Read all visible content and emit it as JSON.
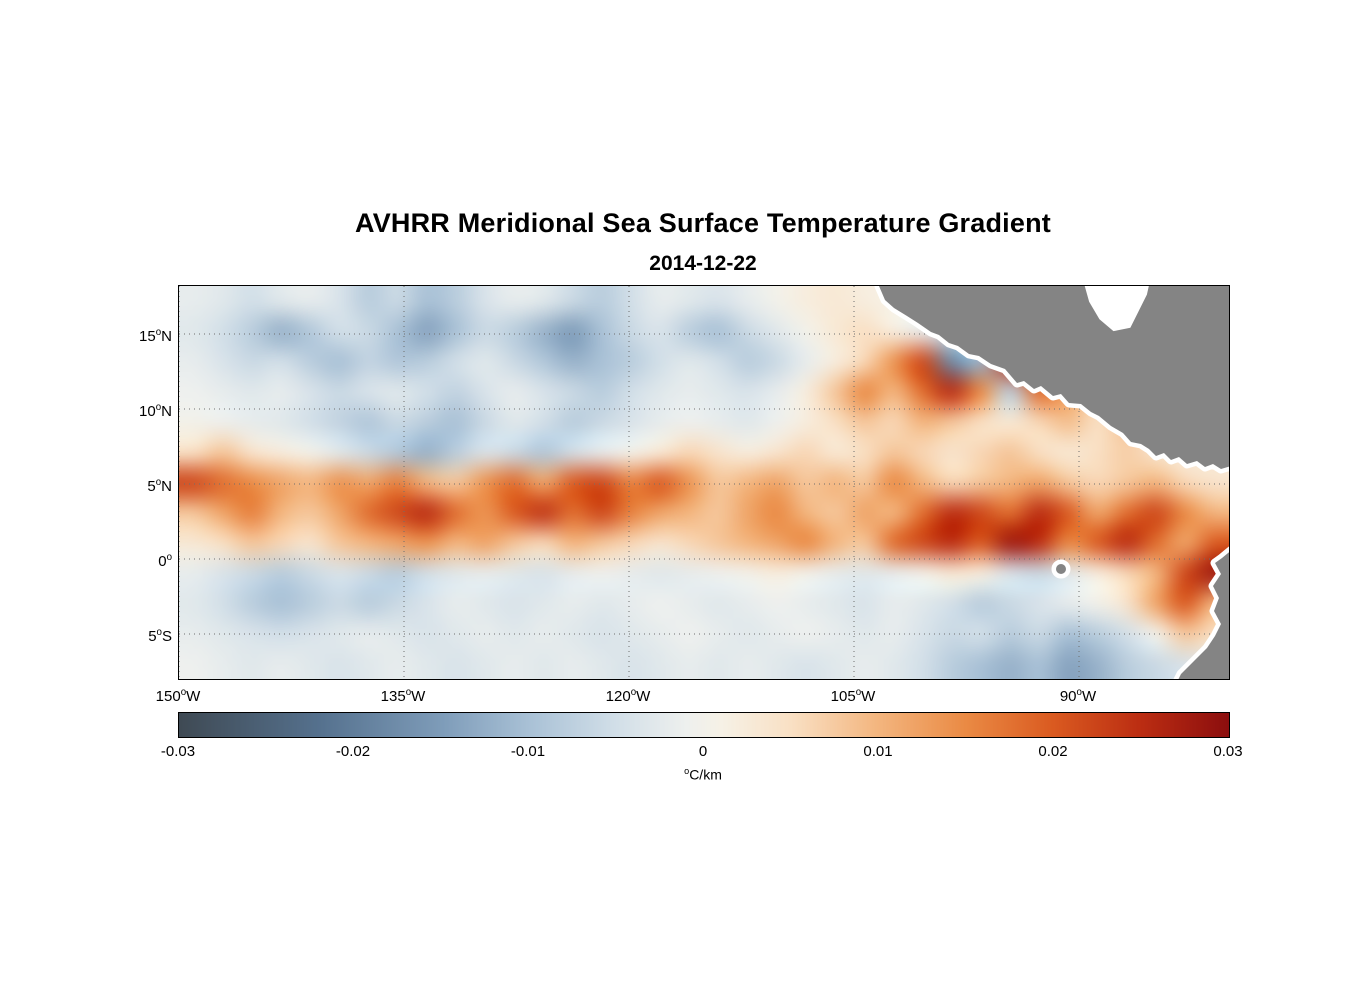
{
  "chart_data": {
    "type": "heatmap",
    "title": "AVHRR Meridional Sea Surface Temperature Gradient",
    "subtitle": "2014-12-22",
    "xlabel": "",
    "ylabel": "",
    "x_axis": {
      "west_edge_lon_w": 150,
      "east_edge_lon_w": 80,
      "ticks": [
        {
          "lon": 150,
          "label": "150°W"
        },
        {
          "lon": 135,
          "label": "135°W"
        },
        {
          "lon": 120,
          "label": "120°W"
        },
        {
          "lon": 105,
          "label": "105°W"
        },
        {
          "lon": 90,
          "label": "90°W"
        }
      ]
    },
    "y_axis": {
      "north_edge_lat": 18.2,
      "south_edge_lat": -8.0,
      "ticks": [
        {
          "lat": 15,
          "label": "15°N"
        },
        {
          "lat": 10,
          "label": "10°N"
        },
        {
          "lat": 5,
          "label": "5°N"
        },
        {
          "lat": 0,
          "label": "0°"
        },
        {
          "lat": -5,
          "label": "5°S"
        }
      ]
    },
    "colorbar": {
      "min": -0.03,
      "max": 0.03,
      "unit": "°C/km",
      "ticks": [
        -0.03,
        -0.02,
        -0.01,
        0,
        0.01,
        0.02,
        0.03
      ],
      "tick_labels": [
        "-0.03",
        "-0.02",
        "-0.01",
        "0",
        "0.01",
        "0.02",
        "0.03"
      ]
    },
    "colormap": [
      [
        -0.03,
        "#3f4a54"
      ],
      [
        -0.022,
        "#55718e"
      ],
      [
        -0.015,
        "#7e9cb9"
      ],
      [
        -0.01,
        "#a9c1d6"
      ],
      [
        -0.005,
        "#d2dfe8"
      ],
      [
        -0.001,
        "#eef0ee"
      ],
      [
        0.001,
        "#f6f1e6"
      ],
      [
        0.005,
        "#f9e0c4"
      ],
      [
        0.01,
        "#f3b57e"
      ],
      [
        0.015,
        "#ea8a44"
      ],
      [
        0.02,
        "#da5a20"
      ],
      [
        0.025,
        "#bb2d12"
      ],
      [
        0.03,
        "#8c0e0e"
      ]
    ],
    "land_color": "#848484",
    "coast_halo_color": "#ffffff",
    "grid_line_color": "#6e6e6e",
    "frame_color": "#000000",
    "grid": {
      "orientation": "row 0 = north (~18N), col 0 = west (150W)",
      "n_cols": 36,
      "n_rows": 13,
      "value_scale": 0.001,
      "values": [
        [
          -2,
          -3,
          -5,
          -3,
          -2,
          -4,
          -8,
          -6,
          -10,
          -8,
          -4,
          -2,
          -3,
          -6,
          -8,
          -5,
          -2,
          -3,
          -4,
          -2,
          0,
          2,
          3,
          2,
          1,
          0,
          0,
          0,
          0,
          0,
          0,
          0,
          0,
          0,
          0,
          0
        ],
        [
          -3,
          -5,
          -8,
          -12,
          -9,
          -5,
          -6,
          -10,
          -14,
          -10,
          -6,
          -8,
          -12,
          -15,
          -10,
          -6,
          -4,
          -8,
          -10,
          -6,
          -3,
          0,
          3,
          5,
          2,
          -2,
          -5,
          0,
          0,
          0,
          0,
          0,
          0,
          0,
          0,
          0
        ],
        [
          -2,
          -4,
          -6,
          -5,
          -8,
          -10,
          -7,
          -9,
          -8,
          -5,
          -3,
          -6,
          -9,
          -12,
          -10,
          -8,
          -5,
          -3,
          -5,
          -8,
          -6,
          -2,
          2,
          6,
          14,
          22,
          -18,
          -12,
          24,
          20,
          -10,
          4,
          0,
          0,
          0,
          0
        ],
        [
          -1,
          -2,
          -3,
          -2,
          -4,
          -6,
          -4,
          -3,
          -5,
          -7,
          -4,
          -2,
          -4,
          -6,
          -8,
          -5,
          -3,
          -2,
          -3,
          -4,
          -2,
          2,
          8,
          15,
          10,
          18,
          25,
          15,
          -8,
          18,
          12,
          6,
          3,
          0,
          0,
          0
        ],
        [
          0,
          -1,
          -2,
          -3,
          -5,
          -7,
          -9,
          -6,
          -8,
          -10,
          -6,
          -3,
          -5,
          -8,
          -6,
          -4,
          -2,
          -1,
          -2,
          -3,
          -1,
          2,
          5,
          8,
          6,
          10,
          8,
          5,
          3,
          6,
          9,
          5,
          8,
          4,
          2,
          0
        ],
        [
          5,
          8,
          4,
          2,
          0,
          -3,
          -6,
          -9,
          -12,
          -8,
          -4,
          -6,
          -9,
          -5,
          -2,
          0,
          3,
          6,
          4,
          2,
          4,
          6,
          3,
          5,
          8,
          6,
          4,
          6,
          8,
          5,
          3,
          5,
          7,
          4,
          2,
          3
        ],
        [
          22,
          18,
          15,
          12,
          10,
          14,
          12,
          16,
          10,
          8,
          14,
          18,
          12,
          20,
          22,
          16,
          20,
          14,
          8,
          10,
          12,
          8,
          10,
          8,
          15,
          10,
          6,
          8,
          10,
          12,
          8,
          6,
          8,
          10,
          6,
          4
        ],
        [
          8,
          12,
          16,
          10,
          8,
          12,
          18,
          22,
          25,
          18,
          14,
          20,
          24,
          18,
          22,
          16,
          12,
          10,
          8,
          12,
          15,
          10,
          8,
          12,
          10,
          18,
          25,
          22,
          18,
          25,
          20,
          12,
          18,
          22,
          15,
          10
        ],
        [
          3,
          5,
          8,
          6,
          4,
          8,
          10,
          12,
          14,
          10,
          12,
          8,
          6,
          10,
          8,
          6,
          4,
          6,
          8,
          10,
          12,
          15,
          10,
          8,
          18,
          22,
          25,
          20,
          28,
          25,
          15,
          20,
          25,
          18,
          12,
          20
        ],
        [
          -2,
          -4,
          -6,
          -8,
          -6,
          -4,
          -6,
          -8,
          -5,
          -3,
          -2,
          -3,
          -4,
          -2,
          -1,
          -2,
          -3,
          -2,
          -1,
          0,
          2,
          0,
          -2,
          -3,
          -2,
          0,
          3,
          2,
          -4,
          -6,
          -3,
          2,
          6,
          10,
          22,
          28
        ],
        [
          -3,
          -5,
          -8,
          -10,
          -8,
          -6,
          -8,
          -6,
          -4,
          -2,
          -3,
          -4,
          -3,
          -2,
          -3,
          -2,
          -1,
          -2,
          -3,
          -2,
          -1,
          -2,
          -3,
          -4,
          -2,
          -3,
          -5,
          -8,
          -6,
          -4,
          -2,
          0,
          4,
          12,
          20,
          10
        ],
        [
          -2,
          -3,
          -4,
          -5,
          -4,
          -3,
          -2,
          -3,
          -4,
          -3,
          -2,
          -3,
          -2,
          -3,
          -4,
          -3,
          -2,
          -1,
          -2,
          -3,
          -2,
          -1,
          -2,
          -3,
          -2,
          -4,
          -6,
          -5,
          -8,
          -6,
          -10,
          -8,
          -5,
          0,
          8,
          5
        ],
        [
          -1,
          -2,
          -3,
          -2,
          -3,
          -4,
          -3,
          -2,
          -3,
          -4,
          -3,
          -2,
          -3,
          -2,
          -3,
          -4,
          -3,
          -2,
          -3,
          -2,
          -3,
          -4,
          -3,
          -2,
          -3,
          -5,
          -8,
          -10,
          -12,
          -10,
          -14,
          -12,
          -8,
          -6,
          -4,
          -2
        ]
      ]
    }
  }
}
